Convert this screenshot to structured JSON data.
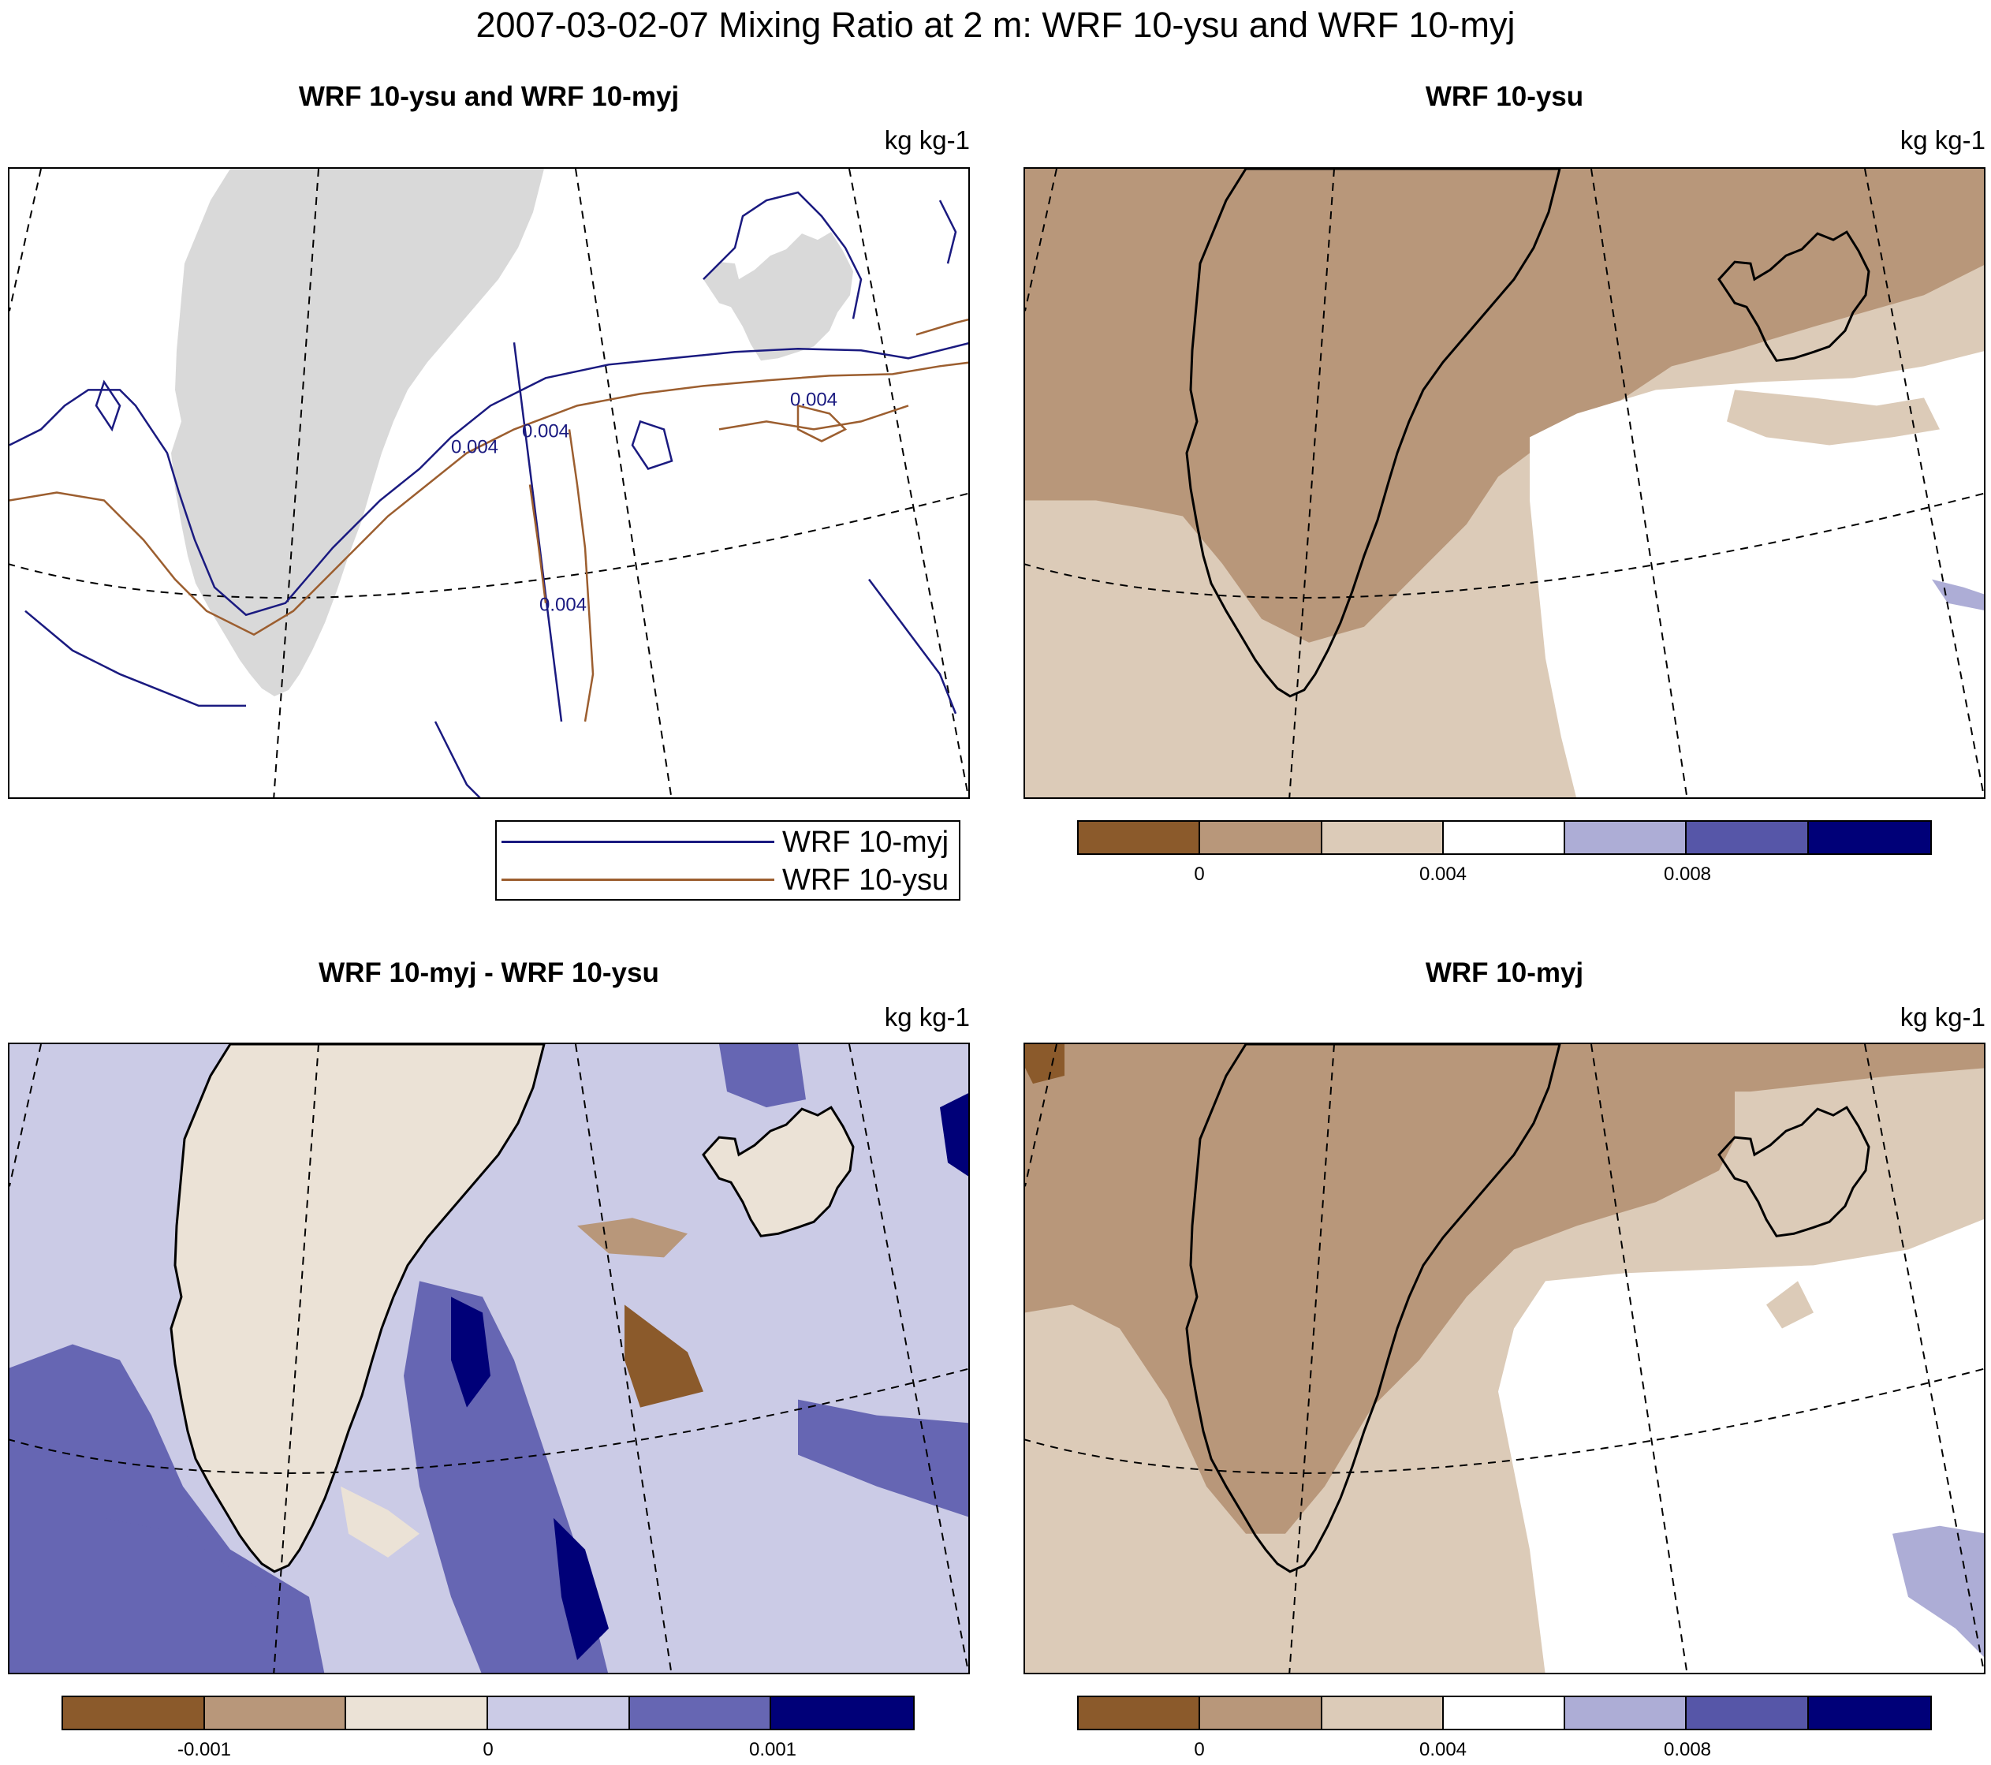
{
  "main_title": "2007-03-02-07 Mixing Ratio at 2 m: WRF 10-ysu and WRF 10-myj",
  "panels": {
    "contour": {
      "title": "WRF 10-ysu and WRF 10-myj",
      "units": "kg kg-1",
      "contour_labels": [
        "0.004",
        "0.004",
        "0.004",
        "0.004"
      ]
    },
    "ysu": {
      "title": "WRF 10-ysu",
      "units": "kg kg-1"
    },
    "diff": {
      "title": "WRF 10-myj - WRF 10-ysu",
      "units": "kg kg-1"
    },
    "myj": {
      "title": "WRF 10-myj",
      "units": "kg kg-1"
    }
  },
  "legend": {
    "entries": [
      {
        "label": "WRF 10-myj",
        "color": "#1a1a80"
      },
      {
        "label": "WRF 10-ysu",
        "color": "#9c5e2f"
      }
    ]
  },
  "colorbars": {
    "mixing_ratio": {
      "colors": [
        "#8b5a2b",
        "#b8977a",
        "#dccbb8",
        "#ffffff",
        "#adadd6",
        "#5656a8",
        "#000078"
      ],
      "tick_labels": [
        "0",
        "0.004",
        "0.008"
      ]
    },
    "difference": {
      "colors": [
        "#8b5a2b",
        "#b8977a",
        "#ebe2d6",
        "#cbcbe6",
        "#6666b3",
        "#000078"
      ],
      "tick_labels": [
        "-0.001",
        "0",
        "0.001"
      ]
    }
  },
  "colors": {
    "land_gray": "#d9d9d9",
    "myj_line": "#1a1a80",
    "ysu_line": "#9c5e2f"
  }
}
